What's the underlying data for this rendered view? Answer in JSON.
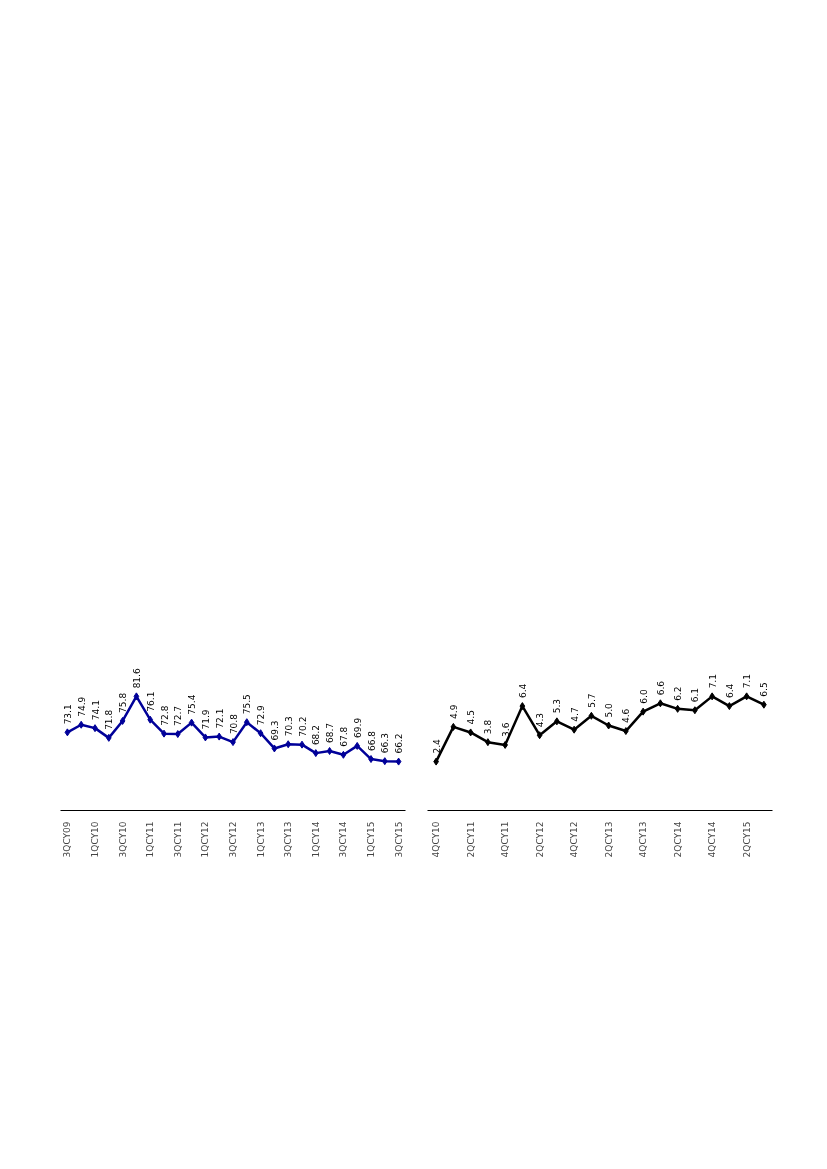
{
  "chart_data": [
    {
      "type": "line",
      "categories": [
        "3QCY09",
        null,
        "1QCY10",
        null,
        "3QCY10",
        null,
        "1QCY11",
        null,
        "3QCY11",
        null,
        "1QCY12",
        null,
        "3QCY12",
        null,
        "1QCY13",
        null,
        "3QCY13",
        null,
        "1QCY14",
        null,
        "3QCY14",
        null,
        "1QCY15",
        null,
        "3QCY15"
      ],
      "series": [
        {
          "color": "#000099",
          "values": [
            73.1,
            74.9,
            74.1,
            71.8,
            75.8,
            81.6,
            76.1,
            72.8,
            72.7,
            75.4,
            71.9,
            72.1,
            70.8,
            75.5,
            72.9,
            69.3,
            70.3,
            70.2,
            68.2,
            68.7,
            67.8,
            69.9,
            66.8,
            66.3,
            66.2
          ],
          "value_labels": [
            "73.1",
            "74.9",
            "74.1",
            "71.8",
            "75.8",
            "81.6",
            "76.1",
            "72.8",
            "72.7",
            "75.4",
            "71.9",
            "72.1",
            "70.8",
            "75.5",
            "72.9",
            "69.3",
            "70.3",
            "70.2",
            "68.2",
            "68.7",
            "67.8",
            "69.9",
            "66.8",
            "66.3",
            "66.2"
          ]
        }
      ],
      "marker": "diamond",
      "grid": false,
      "tick_labels": "x"
    },
    {
      "type": "line",
      "categories": [
        "4QCY10",
        null,
        "2QCY11",
        null,
        "4QCY11",
        null,
        "2QCY12",
        null,
        "4QCY12",
        null,
        "2QCY13",
        null,
        "4QCY13",
        null,
        "2QCY14",
        null,
        "4QCY14",
        null,
        "2QCY15",
        null
      ],
      "series": [
        {
          "color": "#000000",
          "values": [
            2.4,
            4.9,
            4.5,
            3.8,
            3.6,
            6.4,
            4.3,
            5.3,
            4.7,
            5.7,
            5.0,
            4.6,
            6.0,
            6.6,
            6.2,
            6.1,
            7.1,
            6.4,
            7.1,
            6.5
          ],
          "value_labels": [
            "2.4",
            "4.9",
            "4.5",
            "3.8",
            "3.6",
            "6.4",
            "4.3",
            "5.3",
            "4.7",
            "5.7",
            "5.0",
            "4.6",
            "6.0",
            "6.6",
            "6.2",
            "6.1",
            "7.1",
            "6.4",
            "7.1",
            "6.5"
          ]
        }
      ],
      "marker": "diamond",
      "grid": false,
      "tick_labels": "x"
    }
  ]
}
